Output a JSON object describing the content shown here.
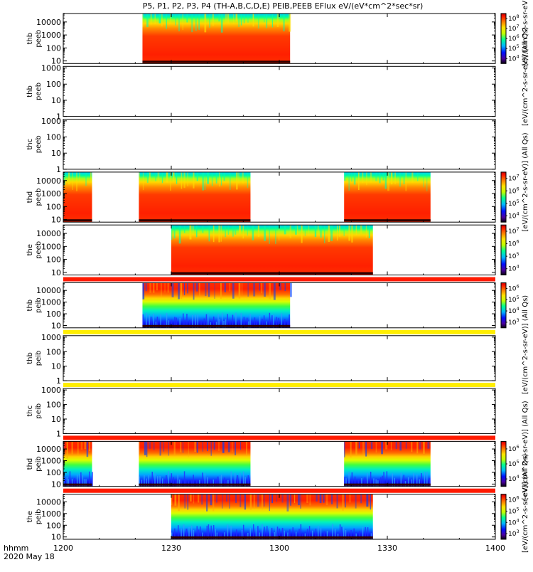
{
  "chart_data": {
    "type": "heatmap",
    "title": "P5, P1, P2, P3, P4 (TH-A,B,C,D,E) PEIB,PEEB EFlux eV/(eV*cm^2*sec*sr)",
    "x_axis": {
      "range": [
        1200,
        1400
      ],
      "tick_labels": [
        "1200",
        "1230",
        "1300",
        "1330",
        "1400"
      ],
      "tick_values": [
        0,
        30,
        60,
        90,
        120
      ]
    },
    "x_axis_caption": "hhmm",
    "date_label": "2020 May 18",
    "colorbar_units": {
      "full": "[eV/(cm^2-s-sr-eV)] (All Qs)",
      "partial": "[eV/(cm^2-s-sr-eV)] (All"
    },
    "panels": [
      {
        "probe": "thb",
        "species": "peeb",
        "yticks": [
          "10",
          "100",
          "1000",
          "10000"
        ],
        "ylog": [
          0.8,
          4.65
        ],
        "coverage": [
          [
            22,
            63
          ]
        ],
        "stripe": null,
        "colorbar": [
          "10^4",
          "10^5",
          "10^6",
          "10^7",
          "10^8"
        ],
        "kind": "electron",
        "units_label": "partial"
      },
      {
        "probe": "thb",
        "species": "peeb",
        "yticks": [
          "1",
          "10",
          "100",
          "1000"
        ],
        "ylog": [
          0,
          3.1
        ],
        "coverage": [],
        "stripe": null,
        "colorbar": null,
        "kind": "empty",
        "units_label": "full"
      },
      {
        "probe": "thc",
        "species": "peeb",
        "yticks": [
          "1",
          "10",
          "100",
          "1000"
        ],
        "ylog": [
          0,
          3.1
        ],
        "coverage": [],
        "stripe": null,
        "colorbar": null,
        "kind": "empty",
        "units_label": null
      },
      {
        "probe": "thd",
        "species": "peeb",
        "yticks": [
          "10",
          "100",
          "1000",
          "10000"
        ],
        "ylog": [
          0.8,
          4.65
        ],
        "coverage": [
          [
            0,
            8
          ],
          [
            21,
            52
          ],
          [
            78,
            102
          ]
        ],
        "stripe": null,
        "colorbar": [
          "10^4",
          "10^5",
          "10^6",
          "10^7"
        ],
        "kind": "electron",
        "units_label": "full"
      },
      {
        "probe": "the",
        "species": "peeb",
        "yticks": [
          "10",
          "100",
          "1000",
          "10000"
        ],
        "ylog": [
          0.8,
          4.65
        ],
        "coverage": [
          [
            30,
            86
          ]
        ],
        "stripe": null,
        "colorbar": [
          "10^4",
          "10^5",
          "10^6",
          "10^7"
        ],
        "kind": "electron",
        "units_label": null
      },
      {
        "probe": "thb",
        "species": "peib",
        "yticks": [
          "10",
          "100",
          "1000",
          "10000"
        ],
        "ylog": [
          0.8,
          4.65
        ],
        "coverage": [
          [
            22,
            63
          ]
        ],
        "stripe": "red",
        "colorbar": [
          "10^3",
          "10^4",
          "10^5",
          "10^6"
        ],
        "kind": "ion",
        "units_label": null
      },
      {
        "probe": "thb",
        "species": "peib",
        "yticks": [
          "1",
          "10",
          "100",
          "1000"
        ],
        "ylog": [
          0,
          3.1
        ],
        "coverage": [],
        "stripe": "yellow",
        "colorbar": null,
        "kind": "empty",
        "units_label": "full"
      },
      {
        "probe": "thc",
        "species": "peib",
        "yticks": [
          "1",
          "10",
          "100",
          "1000"
        ],
        "ylog": [
          0,
          3.1
        ],
        "coverage": [],
        "stripe": "yellow",
        "colorbar": null,
        "kind": "empty",
        "units_label": null
      },
      {
        "probe": "thd",
        "species": "peib",
        "yticks": [
          "10",
          "100",
          "1000",
          "10000"
        ],
        "ylog": [
          0.8,
          4.65
        ],
        "coverage": [
          [
            0,
            8
          ],
          [
            21,
            52
          ],
          [
            78,
            102
          ]
        ],
        "stripe": "red",
        "colorbar": [
          "10^4",
          "10^5",
          "10^6"
        ],
        "kind": "ion",
        "units_label": "full"
      },
      {
        "probe": "the",
        "species": "peib",
        "yticks": [
          "10",
          "100",
          "1000",
          "10000"
        ],
        "ylog": [
          0.8,
          4.65
        ],
        "coverage": [
          [
            30,
            86
          ]
        ],
        "stripe": "red",
        "colorbar": [
          "10^3",
          "10^4",
          "10^5",
          "10^6"
        ],
        "kind": "ion",
        "units_label": "full"
      }
    ]
  }
}
